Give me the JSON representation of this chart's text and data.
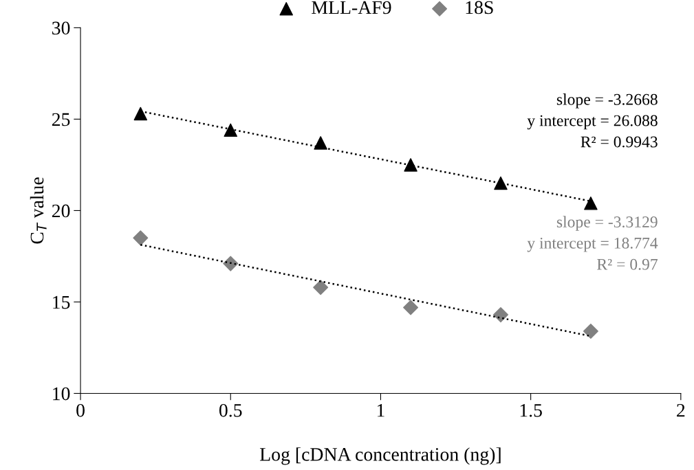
{
  "chart_data": {
    "type": "scatter",
    "xlabel": "Log [cDNA concentration (ng)]",
    "ylabel": "C$_{T}$ value",
    "x": [
      0.2,
      0.5,
      0.8,
      1.1,
      1.4,
      1.7
    ],
    "series": [
      {
        "name": "MLL-AF9",
        "color": "#000000",
        "marker": "triangle",
        "values": [
          25.3,
          24.4,
          23.7,
          22.5,
          21.5,
          20.4
        ]
      },
      {
        "name": "18S",
        "color": "#808080",
        "marker": "diamond",
        "values": [
          18.5,
          17.1,
          15.8,
          14.7,
          14.3,
          13.4
        ]
      },
      {
        "type": "line",
        "color": "#000000",
        "line_style": "dotted",
        "marker": "none",
        "values": [
          25.43,
          24.45,
          23.46,
          22.48,
          21.5,
          20.51
        ]
      },
      {
        "type": "line",
        "color": "#000000",
        "line_style": "dotted",
        "marker": "none",
        "values": [
          18.13,
          17.13,
          16.13,
          15.13,
          14.13,
          13.13
        ]
      }
    ],
    "annotations": [
      "slope = -3.2668",
      "y intercept = 26.088",
      "R² = 0.9943",
      "slope = -3.3129",
      "y intercept = 18.774",
      "R² = 0.97"
    ],
    "xlim": [
      0,
      2
    ],
    "xticks": [
      0,
      0.5,
      1,
      1.5,
      2
    ],
    "ylim": [
      10,
      30
    ],
    "yticks": [
      10,
      15,
      20,
      25,
      30
    ],
    "grid": false,
    "legend": "top"
  }
}
